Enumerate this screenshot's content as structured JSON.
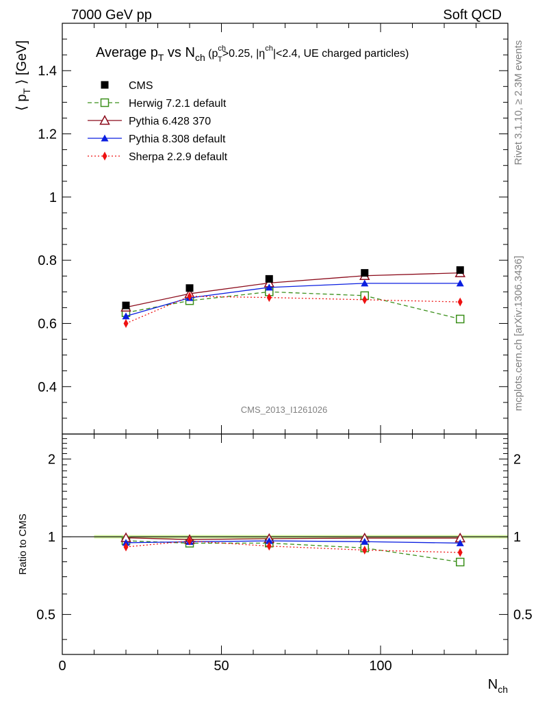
{
  "header": {
    "left": "7000 GeV pp",
    "right": "Soft QCD"
  },
  "side": {
    "top": "Rivet 3.1.10, ≥ 2.3M events",
    "bottom": "mcplots.cern.ch [arXiv:1306.3436]"
  },
  "watermark": "CMS_2013_I1261026",
  "chart_data": [
    {
      "type": "line",
      "title": {
        "main": "Average p",
        "sub_t": "T",
        "vs": " vs N",
        "sub_ch": "ch",
        "cuts_a": " (p",
        "cuts_sup1": "ch",
        "cuts_sub1": "T",
        "cuts_b": ">0.25, |η",
        "cuts_sup2": "ch",
        "cuts_c": "|<2.4, UE charged particles)"
      },
      "ylabel": {
        "a": "⟨ p",
        "sub": "T",
        "b": " ⟩ [GeV]"
      },
      "xlim": [
        0,
        140
      ],
      "ylim": [
        0.25,
        1.55
      ],
      "yticks": [
        0.4,
        0.6,
        0.8,
        1,
        1.2,
        1.4
      ],
      "yticklabels": [
        "0.4",
        "0.6",
        "0.8",
        "1",
        "1.2",
        "1.4"
      ],
      "x": [
        20,
        40,
        65,
        95,
        125
      ],
      "series": [
        {
          "name": "CMS",
          "color": "#000000",
          "marker": "square-filled",
          "dash": "none",
          "values": [
            0.657,
            0.712,
            0.741,
            0.76,
            0.769
          ]
        },
        {
          "name": "Herwig 7.2.1 default",
          "color": "#3a8f1a",
          "marker": "square-open",
          "dash": "6,4",
          "values": [
            0.634,
            0.672,
            0.7,
            0.688,
            0.614
          ]
        },
        {
          "name": "Pythia 6.428 370",
          "color": "#8b0a1a",
          "marker": "triangle-open",
          "dash": "none",
          "values": [
            0.651,
            0.694,
            0.728,
            0.751,
            0.76
          ]
        },
        {
          "name": "Pythia 8.308 default",
          "color": "#0a1ee0",
          "marker": "triangle-filled",
          "dash": "none",
          "values": [
            0.623,
            0.681,
            0.714,
            0.727,
            0.727
          ]
        },
        {
          "name": "Sherpa 2.2.9 default",
          "color": "#ee1111",
          "marker": "diamond-filled",
          "dash": "2,3",
          "values": [
            0.6,
            0.686,
            0.682,
            0.675,
            0.668
          ]
        }
      ]
    },
    {
      "type": "line",
      "ylabel": "Ratio to CMS",
      "xlabel": {
        "a": "N",
        "sub": "ch"
      },
      "xlim": [
        0,
        140
      ],
      "xticks": [
        0,
        50,
        100
      ],
      "xticklabels": [
        "0",
        "50",
        "100"
      ],
      "ylim": [
        0.35,
        2.5
      ],
      "yscale": "log",
      "yticks": [
        0.5,
        1,
        2
      ],
      "yticklabels": [
        "0.5",
        "1",
        "2"
      ],
      "band_color": "#d4f5a0",
      "x": [
        20,
        40,
        65,
        95,
        125
      ],
      "series": [
        {
          "name": "Herwig 7.2.1 default",
          "values": [
            0.965,
            0.944,
            0.945,
            0.905,
            0.798
          ]
        },
        {
          "name": "Pythia 6.428 370",
          "values": [
            0.991,
            0.975,
            0.983,
            0.988,
            0.988
          ]
        },
        {
          "name": "Pythia 8.308 default",
          "values": [
            0.948,
            0.956,
            0.964,
            0.957,
            0.945
          ]
        },
        {
          "name": "Sherpa 2.2.9 default",
          "values": [
            0.913,
            0.963,
            0.92,
            0.888,
            0.869
          ]
        }
      ]
    }
  ]
}
